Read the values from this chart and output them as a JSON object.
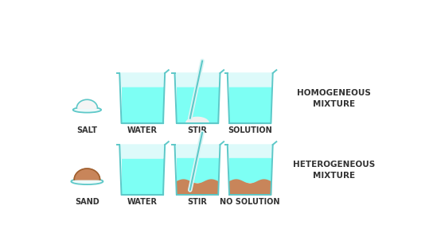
{
  "bg_color": "#ffffff",
  "water_color": "#7dfff4",
  "water_light": "#ddfafa",
  "beaker_edge": "#5dc8c8",
  "sand_color": "#c8855a",
  "label_color": "#333333",
  "row1_labels": [
    "SALT",
    "WATER",
    "STIR",
    "SOLUTION"
  ],
  "row2_labels": [
    "SAND",
    "WATER",
    "STIR",
    "NO SOLUTION"
  ],
  "right_label1": "HOMOGENEOUS\nMIXTURE",
  "right_label2": "HETEROGENEOUS\nMIXTURE",
  "font_size_label": 7.0,
  "font_size_right": 7.5
}
